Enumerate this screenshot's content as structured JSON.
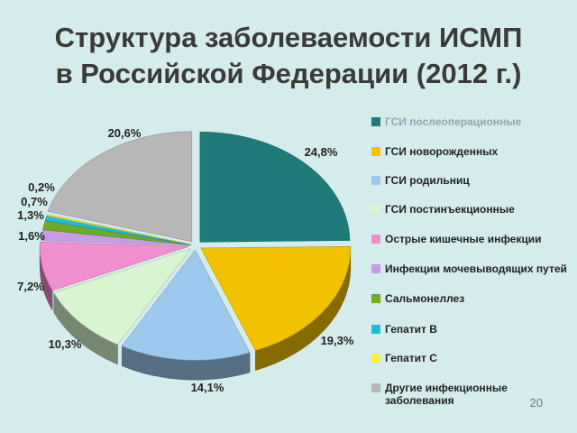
{
  "page": {
    "title_line1": "Структура заболеваемости  ИСМП",
    "title_line2": "в Российской Федерации (2012 г.)",
    "page_number": "20"
  },
  "chart_data": {
    "type": "pie",
    "title": "Структура заболеваемости  ИСМП в Российской Федерации (2012 г.)",
    "style": "3d-exploded",
    "legend_position": "right",
    "slices": [
      {
        "name": "ГСИ послеоперационные",
        "value": 24.8,
        "label": "24,8%",
        "color": "#1e7b79"
      },
      {
        "name": "ГСИ новорожденных",
        "value": 19.3,
        "label": "19,3%",
        "color": "#f2c100"
      },
      {
        "name": "ГСИ родильниц",
        "value": 14.1,
        "label": "14,1%",
        "color": "#9ec9ee"
      },
      {
        "name": "ГСИ постинъекционные",
        "value": 10.3,
        "label": "10,3%",
        "color": "#d6f5d0"
      },
      {
        "name": "Острые кишечные инфекции",
        "value": 7.2,
        "label": "7,2%",
        "color": "#ef8fcb"
      },
      {
        "name": "Инфекции мочевыводящих путей",
        "value": 1.6,
        "label": "1,6%",
        "color": "#c59ce6"
      },
      {
        "name": "Сальмонеллез",
        "value": 1.3,
        "label": "1,3%",
        "color": "#6faa2a"
      },
      {
        "name": "Гепатит В",
        "value": 0.7,
        "label": "0,7%",
        "color": "#22bcd8"
      },
      {
        "name": "Гепатит С",
        "value": 0.2,
        "label": "0,2%",
        "color": "#f3ef3a"
      },
      {
        "name": "Другие инфекционные заболевания",
        "value": 20.6,
        "label": "20,6%",
        "color": "#b7b7b7"
      }
    ]
  },
  "legend": [
    {
      "label": "ГСИ послеоперационные",
      "color": "#1e7b79"
    },
    {
      "label": "ГСИ новорожденных",
      "color": "#f2c100"
    },
    {
      "label": "ГСИ родильниц",
      "color": "#9ec9ee"
    },
    {
      "label": "ГСИ постинъекционные",
      "color": "#d6f5d0"
    },
    {
      "label": "Острые кишечные инфекции",
      "color": "#ef8fcb"
    },
    {
      "label": "Инфекции мочевыводящих путей",
      "color": "#c59ce6"
    },
    {
      "label": "Сальмонеллез",
      "color": "#6faa2a"
    },
    {
      "label": "Гепатит В",
      "color": "#22bcd8"
    },
    {
      "label": "Гепатит С",
      "color": "#f3ef3a"
    },
    {
      "label": "Другие инфекционные заболевания",
      "color": "#b7b7b7"
    }
  ]
}
